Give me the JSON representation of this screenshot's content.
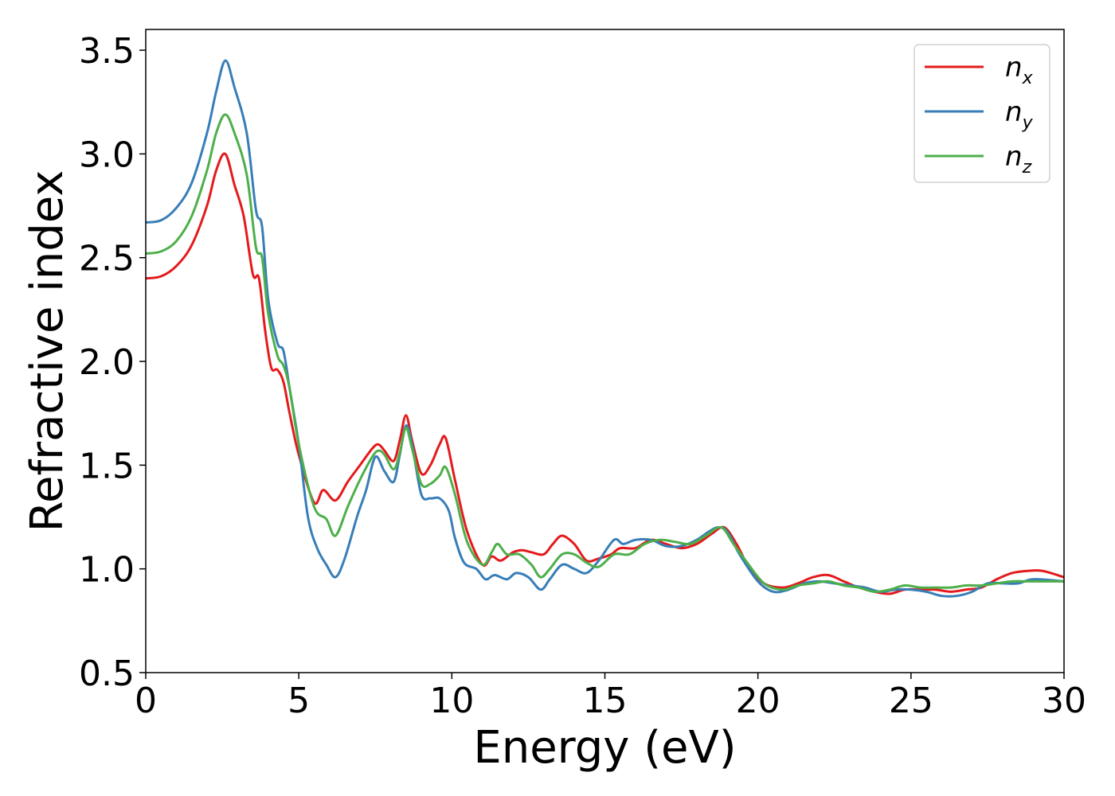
{
  "chart_data": {
    "type": "line",
    "title": "",
    "xlabel": "Energy (eV)",
    "ylabel": "Refractive index",
    "xlim": [
      0,
      30
    ],
    "ylim": [
      0.5,
      3.6
    ],
    "xticks": [
      0,
      5,
      10,
      15,
      20,
      25,
      30
    ],
    "xtick_labels": [
      "0",
      "5",
      "10",
      "15",
      "20",
      "25",
      "30"
    ],
    "yticks": [
      0.5,
      1.0,
      1.5,
      2.0,
      2.5,
      3.0,
      3.5
    ],
    "ytick_labels": [
      "0.5",
      "1.0",
      "1.5",
      "2.0",
      "2.5",
      "3.0",
      "3.5"
    ],
    "grid": false,
    "legend_position": "top-right",
    "series": [
      {
        "name": "n",
        "subscript": "x",
        "color": "#e41a1c",
        "x": [
          0,
          0.5,
          1,
          1.5,
          2,
          2.3,
          2.6,
          2.9,
          3.2,
          3.5,
          3.7,
          3.9,
          4.1,
          4.3,
          4.5,
          4.7,
          5.0,
          5.5,
          5.8,
          6.2,
          6.6,
          7.0,
          7.4,
          7.6,
          7.8,
          8.1,
          8.3,
          8.5,
          8.7,
          9.0,
          9.3,
          9.6,
          9.8,
          10.1,
          10.5,
          11.0,
          11.3,
          11.6,
          12.0,
          12.3,
          12.6,
          13.0,
          13.3,
          13.6,
          14.0,
          14.4,
          14.8,
          15.2,
          15.5,
          16.0,
          16.5,
          17.0,
          17.5,
          18.0,
          18.5,
          18.9,
          19.3,
          19.7,
          20.2,
          20.8,
          21.3,
          21.8,
          22.3,
          22.8,
          23.3,
          23.8,
          24.3,
          24.8,
          25.3,
          25.8,
          26.3,
          26.8,
          27.3,
          27.8,
          28.3,
          28.8,
          29.3,
          30
        ],
        "y": [
          2.4,
          2.41,
          2.46,
          2.56,
          2.75,
          2.92,
          3.0,
          2.85,
          2.7,
          2.42,
          2.4,
          2.15,
          1.97,
          1.96,
          1.9,
          1.75,
          1.55,
          1.32,
          1.38,
          1.33,
          1.42,
          1.5,
          1.58,
          1.6,
          1.57,
          1.52,
          1.62,
          1.74,
          1.62,
          1.46,
          1.5,
          1.6,
          1.63,
          1.43,
          1.18,
          1.02,
          1.06,
          1.04,
          1.08,
          1.09,
          1.08,
          1.07,
          1.12,
          1.16,
          1.12,
          1.04,
          1.05,
          1.07,
          1.1,
          1.1,
          1.14,
          1.12,
          1.1,
          1.12,
          1.17,
          1.2,
          1.12,
          1.01,
          0.93,
          0.91,
          0.93,
          0.96,
          0.97,
          0.94,
          0.91,
          0.89,
          0.88,
          0.9,
          0.9,
          0.9,
          0.89,
          0.9,
          0.91,
          0.95,
          0.98,
          0.99,
          0.99,
          0.96
        ]
      },
      {
        "name": "n",
        "subscript": "y",
        "color": "#377eb8",
        "x": [
          0,
          0.5,
          1,
          1.5,
          2,
          2.3,
          2.6,
          2.9,
          3.3,
          3.6,
          3.8,
          4.0,
          4.3,
          4.5,
          4.7,
          5.0,
          5.3,
          5.6,
          5.9,
          6.2,
          6.5,
          6.9,
          7.2,
          7.5,
          7.8,
          8.1,
          8.3,
          8.5,
          8.7,
          9.0,
          9.3,
          9.6,
          9.9,
          10.1,
          10.4,
          10.8,
          11.1,
          11.4,
          11.8,
          12.1,
          12.5,
          12.9,
          13.2,
          13.6,
          14.0,
          14.4,
          14.8,
          15.3,
          15.6,
          16.0,
          16.5,
          17.0,
          17.5,
          18.0,
          18.4,
          18.7,
          19.0,
          19.4,
          20.0,
          20.5,
          21.0,
          21.5,
          22.0,
          22.5,
          23.0,
          23.5,
          24.0,
          24.5,
          25.0,
          25.5,
          26.0,
          26.5,
          27.0,
          27.5,
          28.0,
          28.5,
          29.0,
          30
        ],
        "y": [
          2.67,
          2.68,
          2.74,
          2.86,
          3.1,
          3.3,
          3.45,
          3.32,
          3.1,
          2.73,
          2.65,
          2.3,
          2.09,
          2.05,
          1.87,
          1.6,
          1.25,
          1.1,
          1.02,
          0.96,
          1.05,
          1.25,
          1.38,
          1.54,
          1.47,
          1.42,
          1.55,
          1.69,
          1.6,
          1.36,
          1.34,
          1.34,
          1.28,
          1.15,
          1.03,
          1.0,
          0.95,
          0.97,
          0.95,
          0.98,
          0.96,
          0.9,
          0.95,
          1.02,
          1.0,
          0.98,
          1.04,
          1.14,
          1.12,
          1.14,
          1.14,
          1.11,
          1.11,
          1.14,
          1.18,
          1.2,
          1.18,
          1.07,
          0.94,
          0.89,
          0.9,
          0.93,
          0.94,
          0.93,
          0.92,
          0.91,
          0.89,
          0.9,
          0.9,
          0.89,
          0.87,
          0.87,
          0.89,
          0.93,
          0.93,
          0.93,
          0.95,
          0.94
        ]
      },
      {
        "name": "n",
        "subscript": "z",
        "color": "#4daf4a",
        "x": [
          0,
          0.5,
          1,
          1.5,
          2,
          2.3,
          2.6,
          2.9,
          3.3,
          3.6,
          3.8,
          4.0,
          4.3,
          4.5,
          4.7,
          5.0,
          5.5,
          5.9,
          6.2,
          6.6,
          7.0,
          7.4,
          7.6,
          7.8,
          8.1,
          8.3,
          8.5,
          8.7,
          9.0,
          9.3,
          9.6,
          9.8,
          10.1,
          10.5,
          11.0,
          11.3,
          11.5,
          11.8,
          12.2,
          12.6,
          12.9,
          13.2,
          13.6,
          14.0,
          14.4,
          14.8,
          15.3,
          15.8,
          16.3,
          16.8,
          17.3,
          17.8,
          18.3,
          18.8,
          19.2,
          19.6,
          20.2,
          20.8,
          21.3,
          21.8,
          22.3,
          22.8,
          23.3,
          23.8,
          24.3,
          24.8,
          25.3,
          25.8,
          26.3,
          26.8,
          27.3,
          27.8,
          28.3,
          28.8,
          29.3,
          30
        ],
        "y": [
          2.52,
          2.53,
          2.58,
          2.7,
          2.92,
          3.1,
          3.19,
          3.1,
          2.9,
          2.55,
          2.5,
          2.23,
          2.03,
          1.98,
          1.87,
          1.6,
          1.3,
          1.24,
          1.16,
          1.3,
          1.43,
          1.54,
          1.57,
          1.55,
          1.48,
          1.56,
          1.68,
          1.58,
          1.41,
          1.41,
          1.45,
          1.49,
          1.36,
          1.13,
          1.02,
          1.08,
          1.12,
          1.07,
          1.07,
          1.02,
          0.96,
          1.0,
          1.07,
          1.07,
          1.03,
          1.01,
          1.07,
          1.07,
          1.12,
          1.14,
          1.13,
          1.12,
          1.16,
          1.2,
          1.12,
          1.04,
          0.93,
          0.9,
          0.92,
          0.93,
          0.94,
          0.92,
          0.91,
          0.89,
          0.9,
          0.92,
          0.91,
          0.91,
          0.91,
          0.92,
          0.92,
          0.93,
          0.94,
          0.94,
          0.94,
          0.94
        ]
      }
    ]
  }
}
